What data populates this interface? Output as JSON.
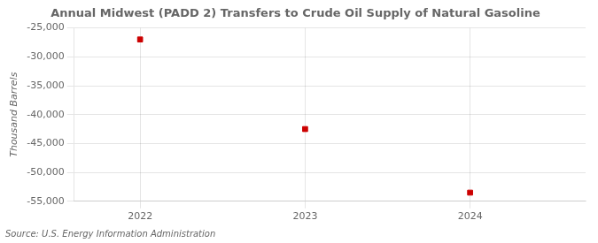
{
  "chart_data": {
    "type": "scatter",
    "title": "Annual Midwest (PADD 2) Transfers to Crude Oil Supply of Natural Gasoline",
    "x": [
      2022,
      2023,
      2024
    ],
    "values": [
      -27000,
      -42500,
      -53500
    ],
    "color": "#cc0000",
    "marker": "square",
    "ylabel": "Thousand Barrels",
    "xlim": [
      2021.6,
      2024.7
    ],
    "xticks": [
      2022,
      2023,
      2024
    ],
    "ylim": [
      -55000,
      -25000
    ],
    "yticks": [
      {
        "value": -25000,
        "label": "-25,000"
      },
      {
        "value": -30000,
        "label": "-30,000"
      },
      {
        "value": -35000,
        "label": "-35,000"
      },
      {
        "value": -40000,
        "label": "-40,000"
      },
      {
        "value": -45000,
        "label": "-45,000"
      },
      {
        "value": -50000,
        "label": "-50,000"
      },
      {
        "value": -55000,
        "label": "-55,000"
      }
    ],
    "grid": true,
    "annotations": [
      "Source: U.S. Energy Information Administration"
    ]
  }
}
